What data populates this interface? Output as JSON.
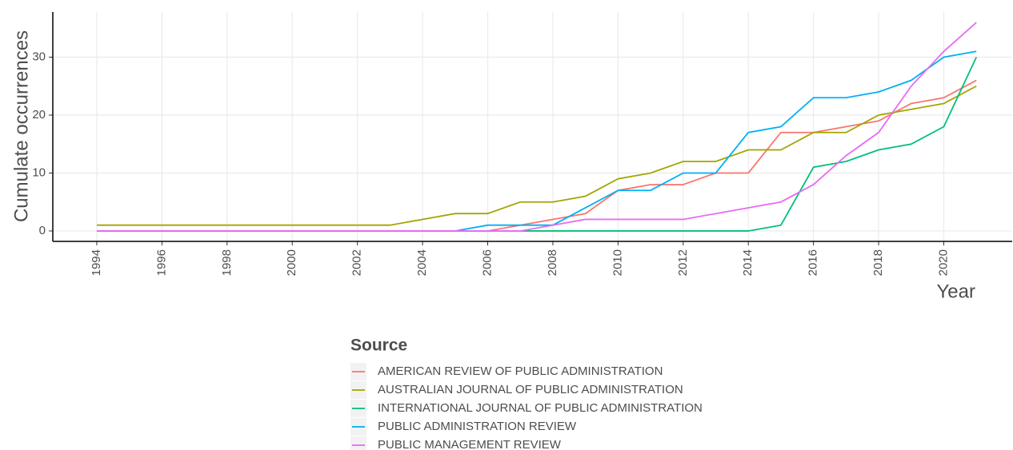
{
  "chart_data": {
    "type": "line",
    "x_label": "Year",
    "y_label": "Cumulate occurrences",
    "legend_title": "Source",
    "x": [
      1994,
      1995,
      1996,
      1997,
      1998,
      1999,
      2000,
      2001,
      2002,
      2003,
      2004,
      2005,
      2006,
      2007,
      2008,
      2009,
      2010,
      2011,
      2012,
      2013,
      2014,
      2015,
      2016,
      2017,
      2018,
      2019,
      2020,
      2021
    ],
    "series": [
      {
        "name": "AMERICAN REVIEW OF PUBLIC ADMINISTRATION",
        "color": "#F8766D",
        "values": [
          0,
          0,
          0,
          0,
          0,
          0,
          0,
          0,
          0,
          0,
          0,
          0,
          0,
          1,
          2,
          3,
          7,
          8,
          8,
          10,
          10,
          17,
          17,
          18,
          19,
          22,
          23,
          26
        ]
      },
      {
        "name": "AUSTRALIAN JOURNAL OF PUBLIC ADMINISTRATION",
        "color": "#A3A500",
        "values": [
          1,
          1,
          1,
          1,
          1,
          1,
          1,
          1,
          1,
          1,
          2,
          3,
          3,
          5,
          5,
          6,
          9,
          10,
          12,
          12,
          14,
          14,
          17,
          17,
          20,
          21,
          22,
          25
        ]
      },
      {
        "name": "INTERNATIONAL JOURNAL OF PUBLIC ADMINISTRATION",
        "color": "#00BF7D",
        "values": [
          0,
          0,
          0,
          0,
          0,
          0,
          0,
          0,
          0,
          0,
          0,
          0,
          0,
          0,
          0,
          0,
          0,
          0,
          0,
          0,
          0,
          1,
          11,
          12,
          14,
          15,
          18,
          30
        ]
      },
      {
        "name": "PUBLIC ADMINISTRATION REVIEW",
        "color": "#00B0F6",
        "values": [
          0,
          0,
          0,
          0,
          0,
          0,
          0,
          0,
          0,
          0,
          0,
          0,
          1,
          1,
          1,
          4,
          7,
          7,
          10,
          10,
          17,
          18,
          23,
          23,
          24,
          26,
          30,
          31
        ]
      },
      {
        "name": "PUBLIC MANAGEMENT REVIEW",
        "color": "#E76BF3",
        "values": [
          0,
          0,
          0,
          0,
          0,
          0,
          0,
          0,
          0,
          0,
          0,
          0,
          0,
          0,
          1,
          2,
          2,
          2,
          2,
          3,
          4,
          5,
          8,
          13,
          17,
          25,
          31,
          36
        ]
      }
    ],
    "xlim": [
      1992.65,
      2022.1
    ],
    "xticks": [
      1994,
      1996,
      1998,
      2000,
      2002,
      2004,
      2006,
      2008,
      2010,
      2012,
      2014,
      2016,
      2018,
      2020
    ],
    "ylim": [
      -1.8,
      37.8
    ],
    "yticks": [
      0,
      10,
      20,
      30
    ],
    "grid": true
  }
}
